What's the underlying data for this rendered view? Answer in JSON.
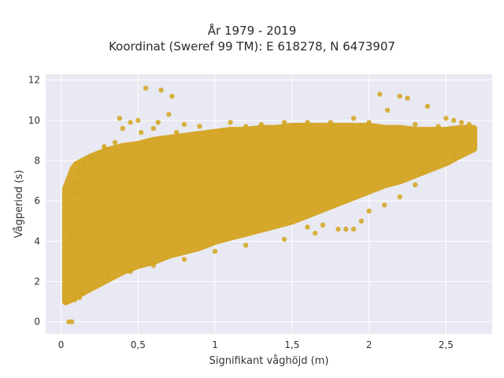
{
  "chart_data": {
    "type": "scatter",
    "title": [
      "År 1979 - 2019",
      "Koordinat (Sweref 99 TM): E 618278, N 6473907"
    ],
    "xlabel": "Signifikant våghöjd (m)",
    "ylabel": "Vågperiod (s)",
    "xlim": [
      -0.1,
      2.8
    ],
    "ylim": [
      -0.6,
      12.3
    ],
    "x_ticks": [
      0,
      0.5,
      1,
      1.5,
      2,
      2.5
    ],
    "x_tick_labels": [
      "0",
      "0,5",
      "1",
      "1,5",
      "2",
      "2,5"
    ],
    "y_ticks": [
      0,
      2,
      4,
      6,
      8,
      10,
      12
    ],
    "y_tick_labels": [
      "0",
      "2",
      "4",
      "6",
      "8",
      "10",
      "12"
    ],
    "grid": true,
    "legend": "none",
    "colors": {
      "marker": "#D4A420",
      "plot_background": "#E8E9F2",
      "grid": "#ffffff"
    },
    "series": [
      {
        "cloud": [
          [
            0.03,
            1.0,
            6.6
          ],
          [
            0.06,
            1.1,
            7.2
          ],
          [
            0.08,
            1.2,
            7.6
          ],
          [
            0.1,
            1.3,
            7.8
          ],
          [
            0.15,
            1.5,
            8.0
          ],
          [
            0.2,
            1.7,
            8.2
          ],
          [
            0.3,
            2.1,
            8.5
          ],
          [
            0.4,
            2.5,
            8.7
          ],
          [
            0.5,
            2.8,
            8.8
          ],
          [
            0.6,
            3.0,
            9.0
          ],
          [
            0.7,
            3.3,
            9.1
          ],
          [
            0.8,
            3.5,
            9.2
          ],
          [
            0.9,
            3.7,
            9.3
          ],
          [
            1.0,
            4.0,
            9.4
          ],
          [
            1.1,
            4.2,
            9.5
          ],
          [
            1.2,
            4.4,
            9.5
          ],
          [
            1.3,
            4.6,
            9.6
          ],
          [
            1.4,
            4.8,
            9.6
          ],
          [
            1.5,
            5.0,
            9.7
          ],
          [
            1.6,
            5.3,
            9.7
          ],
          [
            1.7,
            5.6,
            9.7
          ],
          [
            1.8,
            5.9,
            9.7
          ],
          [
            1.9,
            6.2,
            9.7
          ],
          [
            2.0,
            6.5,
            9.7
          ],
          [
            2.1,
            6.8,
            9.6
          ],
          [
            2.2,
            7.0,
            9.6
          ],
          [
            2.3,
            7.3,
            9.5
          ],
          [
            2.4,
            7.6,
            9.5
          ],
          [
            2.5,
            7.9,
            9.5
          ],
          [
            2.6,
            8.3,
            9.6
          ],
          [
            2.68,
            8.6,
            9.6
          ]
        ],
        "points": [
          [
            0.55,
            11.6
          ],
          [
            0.65,
            11.5
          ],
          [
            0.72,
            11.2
          ],
          [
            0.7,
            10.3
          ],
          [
            0.38,
            10.1
          ],
          [
            0.45,
            9.9
          ],
          [
            0.52,
            9.4
          ],
          [
            0.63,
            9.9
          ],
          [
            0.8,
            9.8
          ],
          [
            2.07,
            11.3
          ],
          [
            2.2,
            11.2
          ],
          [
            2.25,
            11.1
          ],
          [
            2.12,
            10.5
          ],
          [
            2.38,
            10.7
          ],
          [
            2.5,
            10.1
          ],
          [
            2.55,
            10.0
          ],
          [
            2.6,
            9.9
          ],
          [
            2.65,
            9.8
          ],
          [
            2.45,
            9.7
          ],
          [
            0.28,
            8.7
          ],
          [
            0.25,
            8.4
          ],
          [
            0.3,
            7.9
          ],
          [
            0.35,
            8.9
          ],
          [
            0.4,
            9.6
          ],
          [
            0.9,
            9.7
          ],
          [
            1.2,
            9.7
          ],
          [
            1.3,
            9.8
          ],
          [
            1.55,
            9.6
          ],
          [
            1.75,
            9.9
          ],
          [
            1.9,
            10.1
          ],
          [
            0.05,
            0.0
          ],
          [
            0.07,
            0.0
          ],
          [
            0.06,
            4.3
          ],
          [
            0.04,
            2.0
          ],
          [
            0.05,
            1.5
          ],
          [
            0.09,
            1.1
          ],
          [
            0.12,
            1.2
          ],
          [
            0.14,
            1.4
          ],
          [
            0.3,
            2.3
          ],
          [
            0.45,
            2.5
          ],
          [
            0.6,
            2.8
          ],
          [
            0.8,
            3.1
          ],
          [
            1.0,
            3.5
          ],
          [
            1.2,
            3.8
          ],
          [
            1.45,
            4.1
          ],
          [
            1.65,
            4.4
          ],
          [
            1.85,
            4.6
          ],
          [
            1.95,
            5.0
          ],
          [
            2.1,
            5.8
          ],
          [
            2.2,
            6.2
          ],
          [
            2.3,
            6.8
          ],
          [
            2.35,
            7.5
          ],
          [
            2.55,
            8.2
          ],
          [
            1.6,
            4.7
          ],
          [
            1.8,
            4.6
          ],
          [
            1.9,
            4.6
          ],
          [
            2.0,
            5.5
          ],
          [
            1.7,
            4.8
          ],
          [
            0.09,
            6.4
          ],
          [
            0.1,
            6.9
          ],
          [
            0.12,
            7.5
          ],
          [
            0.15,
            7.9
          ],
          [
            0.2,
            8.1
          ],
          [
            0.55,
            8.8
          ],
          [
            0.75,
            9.4
          ],
          [
            1.05,
            9.5
          ],
          [
            1.4,
            9.6
          ],
          [
            1.6,
            9.9
          ],
          [
            2.3,
            9.8
          ],
          [
            2.0,
            9.9
          ],
          [
            0.5,
            10.0
          ],
          [
            0.6,
            9.6
          ],
          [
            1.1,
            9.9
          ],
          [
            1.45,
            9.9
          ]
        ]
      }
    ]
  }
}
